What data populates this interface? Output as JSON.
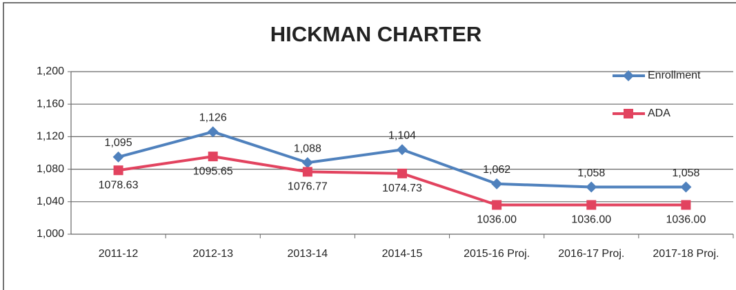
{
  "chart_data": {
    "type": "line",
    "title": "HICKMAN CHARTER",
    "categories": [
      "2011-12",
      "2012-13",
      "2013-14",
      "2014-15",
      "2015-16 Proj.",
      "2016-17 Proj.",
      "2017-18 Proj."
    ],
    "series": [
      {
        "name": "Enrollment",
        "color": "#4f81bd",
        "marker": "diamond",
        "values": [
          1095,
          1126,
          1088,
          1104,
          1062,
          1058,
          1058
        ],
        "value_labels": [
          "1,095",
          "1,126",
          "1,088",
          "1,104",
          "1,062",
          "1,058",
          "1,058"
        ]
      },
      {
        "name": "ADA",
        "color": "#e2435f",
        "marker": "square",
        "values": [
          1078.63,
          1095.65,
          1076.77,
          1074.73,
          1036,
          1036,
          1036
        ],
        "value_labels": [
          "1078.63",
          "1095.65",
          "1076.77",
          "1074.73",
          "1036.00",
          "1036.00",
          "1036.00"
        ]
      }
    ],
    "ylim": [
      1000,
      1200
    ],
    "yticks": [
      {
        "value": 1000,
        "label": "1,000"
      },
      {
        "value": 1040,
        "label": "1,040"
      },
      {
        "value": 1080,
        "label": "1,080"
      },
      {
        "value": 1120,
        "label": "1,120"
      },
      {
        "value": 1160,
        "label": "1,160"
      },
      {
        "value": 1200,
        "label": "1,200"
      }
    ],
    "grid": true,
    "legend": "top-right"
  }
}
